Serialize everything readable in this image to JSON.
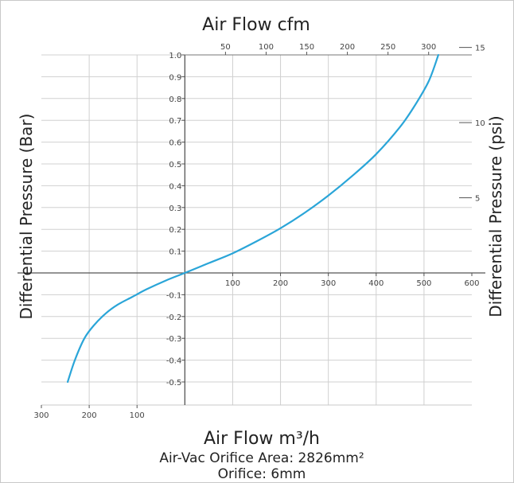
{
  "chart_data": {
    "type": "line",
    "title": "Air Flow cfm",
    "xlabel": "Air Flow m³/h",
    "ylabel": "Differential Pressure (Bar)",
    "y2label": "Differential Pressure (psi)",
    "subtitle": "Air-Vac Orifice Area: 2826mm²",
    "footnote": "Orifice: 6mm",
    "xlim": [
      -300,
      600
    ],
    "ylim": [
      -0.6,
      1.0
    ],
    "grid": true,
    "x_ticks": [
      {
        "v": -300,
        "label": "300"
      },
      {
        "v": -200,
        "label": "200"
      },
      {
        "v": -100,
        "label": "100"
      },
      {
        "v": 100,
        "label": "100"
      },
      {
        "v": 200,
        "label": "200"
      },
      {
        "v": 300,
        "label": "300"
      },
      {
        "v": 400,
        "label": "400"
      },
      {
        "v": 500,
        "label": "500"
      },
      {
        "v": 600,
        "label": "600"
      }
    ],
    "y_ticks": [
      {
        "v": 1.0,
        "label": "1.0"
      },
      {
        "v": 0.9,
        "label": "0.9"
      },
      {
        "v": 0.8,
        "label": "0.8"
      },
      {
        "v": 0.7,
        "label": "0.7"
      },
      {
        "v": 0.6,
        "label": "0.6"
      },
      {
        "v": 0.5,
        "label": "0.5"
      },
      {
        "v": 0.4,
        "label": "0.4"
      },
      {
        "v": 0.3,
        "label": "0.3"
      },
      {
        "v": 0.2,
        "label": "0.2"
      },
      {
        "v": 0.1,
        "label": "0.1"
      },
      {
        "v": -0.1,
        "label": "-0.1"
      },
      {
        "v": -0.2,
        "label": "-0.2"
      },
      {
        "v": -0.3,
        "label": "-0.3"
      },
      {
        "v": -0.4,
        "label": "-0.4"
      },
      {
        "v": -0.5,
        "label": "-0.5"
      }
    ],
    "cfm_ticks": [
      {
        "v": 50,
        "label": "50"
      },
      {
        "v": 100,
        "label": "100"
      },
      {
        "v": 150,
        "label": "150"
      },
      {
        "v": 200,
        "label": "200"
      },
      {
        "v": 250,
        "label": "250"
      },
      {
        "v": 300,
        "label": "300"
      }
    ],
    "psi_ticks": [
      {
        "v": 5,
        "label": "5"
      },
      {
        "v": 10,
        "label": "10"
      },
      {
        "v": 15,
        "label": "15"
      }
    ],
    "series": [
      {
        "color": "#2aa5d8",
        "x": [
          -245,
          -230,
          -210,
          -190,
          -165,
          -140,
          -110,
          -80,
          -40,
          0,
          50,
          100,
          150,
          200,
          250,
          300,
          350,
          400,
          450,
          480,
          510,
          530
        ],
        "y": [
          -0.5,
          -0.4,
          -0.3,
          -0.24,
          -0.185,
          -0.145,
          -0.11,
          -0.075,
          -0.035,
          0.0,
          0.045,
          0.09,
          0.145,
          0.205,
          0.275,
          0.355,
          0.445,
          0.545,
          0.67,
          0.765,
          0.88,
          1.0
        ]
      }
    ]
  }
}
